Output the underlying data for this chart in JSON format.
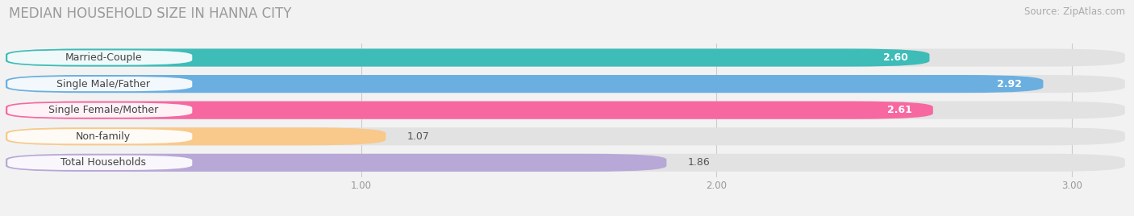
{
  "title": "MEDIAN HOUSEHOLD SIZE IN HANNA CITY",
  "source": "Source: ZipAtlas.com",
  "categories": [
    "Married-Couple",
    "Single Male/Father",
    "Single Female/Mother",
    "Non-family",
    "Total Households"
  ],
  "values": [
    2.6,
    2.92,
    2.61,
    1.07,
    1.86
  ],
  "bar_colors": [
    "#3dbcb8",
    "#6aafe0",
    "#f768a1",
    "#f8c98a",
    "#b8a8d8"
  ],
  "xlim": [
    0,
    3.15
  ],
  "xmin": 0,
  "xticks": [
    1.0,
    2.0,
    3.0
  ],
  "background_color": "#f2f2f2",
  "bar_bg_color": "#e2e2e2",
  "title_fontsize": 12,
  "source_fontsize": 8.5,
  "label_fontsize": 9,
  "value_fontsize": 9,
  "value_threshold": 2.0
}
